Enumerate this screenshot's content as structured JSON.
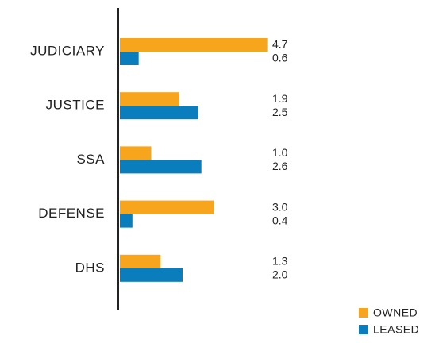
{
  "chart_data": {
    "type": "bar",
    "orientation": "horizontal",
    "categories": [
      "JUDICIARY",
      "JUSTICE",
      "SSA",
      "DEFENSE",
      "DHS"
    ],
    "series": [
      {
        "name": "OWNED",
        "color": "#f7a51c",
        "values": [
          4.7,
          1.9,
          1.0,
          3.0,
          1.3
        ],
        "value_labels": [
          "4.7",
          "1.9",
          "1.0",
          "3.0",
          "1.3"
        ]
      },
      {
        "name": "LEASED",
        "color": "#0a7dbc",
        "values": [
          0.6,
          2.5,
          2.6,
          0.4,
          2.0
        ],
        "value_labels": [
          "0.6",
          "2.5",
          "2.6",
          "0.4",
          "2.0"
        ]
      }
    ],
    "legend": "bottom-right"
  }
}
